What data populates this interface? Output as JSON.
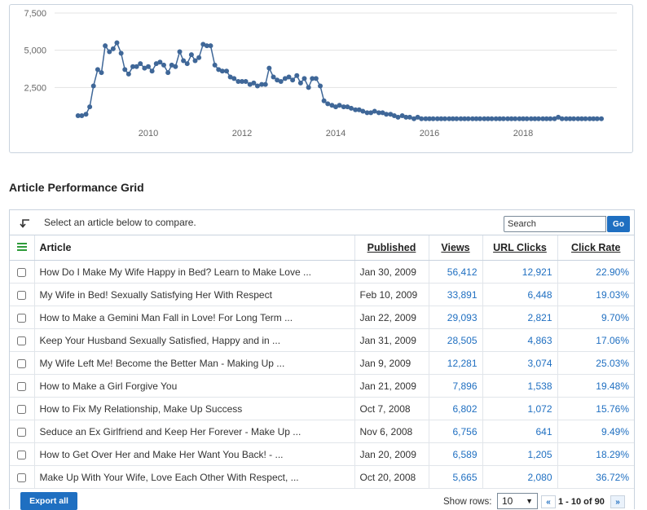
{
  "chart_data": {
    "type": "line",
    "x_ticks": [
      "2010",
      "2012",
      "2014",
      "2016",
      "2018"
    ],
    "y_ticks": [
      "2,500",
      "5,000",
      "7,500"
    ],
    "ylim": [
      0,
      7500
    ],
    "xlim": [
      2008.0,
      2020.0
    ],
    "grid": true,
    "series_color": "#3f6798",
    "x": [
      2008.5,
      2008.58,
      2008.67,
      2008.75,
      2008.83,
      2008.92,
      2009.0,
      2009.08,
      2009.17,
      2009.25,
      2009.33,
      2009.42,
      2009.5,
      2009.58,
      2009.67,
      2009.75,
      2009.83,
      2009.92,
      2010.0,
      2010.08,
      2010.17,
      2010.25,
      2010.33,
      2010.42,
      2010.5,
      2010.58,
      2010.67,
      2010.75,
      2010.83,
      2010.92,
      2011.0,
      2011.08,
      2011.17,
      2011.25,
      2011.33,
      2011.42,
      2011.5,
      2011.58,
      2011.67,
      2011.75,
      2011.83,
      2011.92,
      2012.0,
      2012.08,
      2012.17,
      2012.25,
      2012.33,
      2012.42,
      2012.5,
      2012.58,
      2012.67,
      2012.75,
      2012.83,
      2012.92,
      2013.0,
      2013.08,
      2013.17,
      2013.25,
      2013.33,
      2013.42,
      2013.5,
      2013.58,
      2013.67,
      2013.75,
      2013.83,
      2013.92,
      2014.0,
      2014.08,
      2014.17,
      2014.25,
      2014.33,
      2014.42,
      2014.5,
      2014.58,
      2014.67,
      2014.75,
      2014.83,
      2014.92,
      2015.0,
      2015.08,
      2015.17,
      2015.25,
      2015.33,
      2015.42,
      2015.5,
      2015.58,
      2015.67,
      2015.75,
      2015.83,
      2015.92,
      2016.0,
      2016.08,
      2016.17,
      2016.25,
      2016.33,
      2016.42,
      2016.5,
      2016.58,
      2016.67,
      2016.75,
      2016.83,
      2016.92,
      2017.0,
      2017.08,
      2017.17,
      2017.25,
      2017.33,
      2017.42,
      2017.5,
      2017.58,
      2017.67,
      2017.75,
      2017.83,
      2017.92,
      2018.0,
      2018.08,
      2018.17,
      2018.25,
      2018.33,
      2018.42,
      2018.5,
      2018.58,
      2018.67,
      2018.75,
      2018.83,
      2018.92,
      2019.0,
      2019.08,
      2019.17,
      2019.25,
      2019.33,
      2019.42,
      2019.5,
      2019.58,
      2019.67
    ],
    "values": [
      600,
      600,
      700,
      1200,
      2600,
      3700,
      3500,
      5300,
      4900,
      5100,
      5500,
      4800,
      3700,
      3400,
      3900,
      3900,
      4100,
      3800,
      3900,
      3600,
      4100,
      4200,
      4000,
      3500,
      4000,
      3900,
      4900,
      4300,
      4100,
      4700,
      4300,
      4500,
      5400,
      5300,
      5300,
      4000,
      3700,
      3600,
      3600,
      3200,
      3100,
      2900,
      2900,
      2900,
      2700,
      2800,
      2600,
      2700,
      2700,
      3800,
      3200,
      3000,
      2900,
      3100,
      3200,
      3000,
      3300,
      2800,
      3100,
      2500,
      3100,
      3100,
      2600,
      1600,
      1400,
      1300,
      1200,
      1300,
      1200,
      1200,
      1100,
      1000,
      1000,
      900,
      800,
      800,
      900,
      800,
      800,
      700,
      700,
      600,
      500,
      600,
      500,
      500,
      400,
      500,
      400,
      400,
      400,
      400,
      400,
      400,
      400,
      400,
      400,
      400,
      400,
      400,
      400,
      400,
      400,
      400,
      400,
      400,
      400,
      400,
      400,
      400,
      400,
      400,
      400,
      400,
      400,
      400,
      400,
      400,
      400,
      400,
      400,
      400,
      400,
      500,
      400,
      400,
      400,
      400,
      400,
      400,
      400,
      400,
      400,
      400,
      400
    ]
  },
  "grid": {
    "title": "Article Performance Grid",
    "compare_text": "Select an article below to compare.",
    "search_placeholder": "Search",
    "go_label": "Go",
    "columns": {
      "article": "Article",
      "published": "Published",
      "views": "Views",
      "url_clicks": "URL Clicks",
      "click_rate": "Click Rate"
    },
    "rows": [
      {
        "article": "How Do I Make My Wife Happy in Bed? Learn to Make Love ...",
        "published": "Jan 30, 2009",
        "views": "56,412",
        "url_clicks": "12,921",
        "click_rate": "22.90%"
      },
      {
        "article": "My Wife in Bed! Sexually Satisfying Her With Respect",
        "published": "Feb 10, 2009",
        "views": "33,891",
        "url_clicks": "6,448",
        "click_rate": "19.03%"
      },
      {
        "article": "How to Make a Gemini Man Fall in Love! For Long Term ...",
        "published": "Jan 22, 2009",
        "views": "29,093",
        "url_clicks": "2,821",
        "click_rate": "9.70%"
      },
      {
        "article": "Keep Your Husband Sexually Satisfied, Happy and in ...",
        "published": "Jan 31, 2009",
        "views": "28,505",
        "url_clicks": "4,863",
        "click_rate": "17.06%"
      },
      {
        "article": "My Wife Left Me! Become the Better Man - Making Up ...",
        "published": "Jan 9, 2009",
        "views": "12,281",
        "url_clicks": "3,074",
        "click_rate": "25.03%"
      },
      {
        "article": "How to Make a Girl Forgive You",
        "published": "Jan 21, 2009",
        "views": "7,896",
        "url_clicks": "1,538",
        "click_rate": "19.48%"
      },
      {
        "article": "How to Fix My Relationship, Make Up Success",
        "published": "Oct 7, 2008",
        "views": "6,802",
        "url_clicks": "1,072",
        "click_rate": "15.76%"
      },
      {
        "article": "Seduce an Ex Girlfriend and Keep Her Forever - Make Up ...",
        "published": "Nov 6, 2008",
        "views": "6,756",
        "url_clicks": "641",
        "click_rate": "9.49%"
      },
      {
        "article": "How to Get Over Her and Make Her Want You Back! - ...",
        "published": "Jan 20, 2009",
        "views": "6,589",
        "url_clicks": "1,205",
        "click_rate": "18.29%"
      },
      {
        "article": "Make Up With Your Wife, Love Each Other With Respect, ...",
        "published": "Oct 20, 2008",
        "views": "5,665",
        "url_clicks": "2,080",
        "click_rate": "36.72%"
      }
    ]
  },
  "footer": {
    "export_label": "Export all",
    "show_rows_label": "Show rows:",
    "rows_value": "10",
    "prev_label": "«",
    "page_info": "1 - 10 of 90",
    "next_label": "»"
  }
}
